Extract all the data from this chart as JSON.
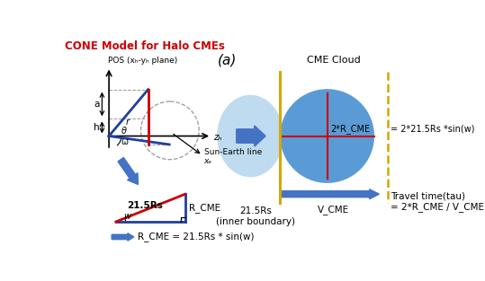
{
  "title": "CONE Model for Halo CMEs",
  "title_color": "#cc0000",
  "label_a": "(a)",
  "pos_label": "POS (xₕ-yₕ plane)",
  "sun_earth_label": "Sun-Earth line",
  "xh_label": "zₕ",
  "xe_label": "xₑ",
  "inner_boundary_label": "21.5Rs\n(inner boundary)",
  "cme_cloud_label": "CME Cloud",
  "formula1": "2*R_CME = 2*21.5Rs *sin(w)",
  "formula2": "V_CME",
  "formula3": "Travel time(tau)\n= 2*R_CME / V_CME",
  "formula4": "2*R_CME",
  "triangle_label1": "21.5Rs",
  "triangle_label2": "R_CME",
  "triangle_label3": "w",
  "formula5": "R_CME = 21.5Rs * sin(w)",
  "bg_color": "#ffffff",
  "light_blue": "#b8d8ee",
  "medium_blue": "#5b9bd5",
  "yellow_line": "#d4a800",
  "red_line": "#cc0000",
  "blue_line": "#1f3f9f",
  "gray_line": "#999999",
  "arrow_blue": "#4472c4",
  "dark_arrow_blue": "#2e5fa3"
}
